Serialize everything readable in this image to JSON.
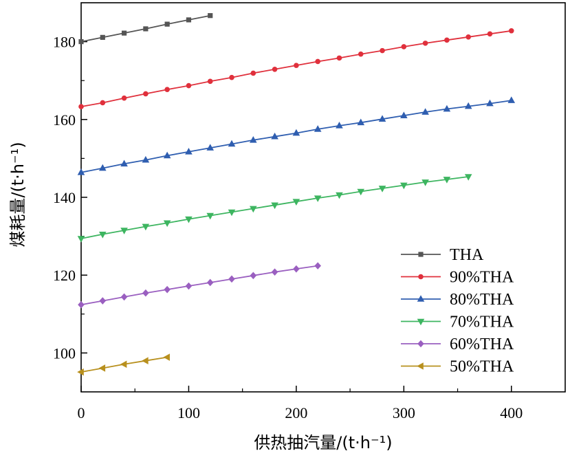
{
  "chart_data": {
    "type": "line",
    "xlabel": "供热抽汽量/(t·h⁻¹)",
    "ylabel": "煤耗量/(t·h⁻¹)",
    "xlim": [
      0,
      450
    ],
    "ylim": [
      90,
      190
    ],
    "xticks": [
      0,
      100,
      200,
      300,
      400
    ],
    "yticks": [
      100,
      120,
      140,
      160,
      180
    ],
    "legend_position": "bottom-right",
    "series": [
      {
        "name": "THA",
        "color": "#555555",
        "marker": "square",
        "x": [
          0,
          20,
          40,
          60,
          80,
          100,
          120
        ],
        "y": [
          180.0,
          181.1,
          182.2,
          183.3,
          184.5,
          185.6,
          186.7
        ]
      },
      {
        "name": "90%THA",
        "color": "#e0303c",
        "marker": "circle",
        "x": [
          0,
          20,
          40,
          60,
          80,
          100,
          120,
          140,
          160,
          180,
          200,
          220,
          240,
          260,
          280,
          300,
          320,
          340,
          360,
          380,
          400
        ],
        "y": [
          163.3,
          164.3,
          165.5,
          166.6,
          167.7,
          168.7,
          169.8,
          170.8,
          171.9,
          172.9,
          173.9,
          174.9,
          175.8,
          176.8,
          177.7,
          178.7,
          179.6,
          180.4,
          181.2,
          182.0,
          182.8
        ]
      },
      {
        "name": "80%THA",
        "color": "#2f5eb0",
        "marker": "triangle-up",
        "x": [
          0,
          20,
          40,
          60,
          80,
          100,
          120,
          140,
          160,
          180,
          200,
          220,
          240,
          260,
          280,
          300,
          320,
          340,
          360,
          380,
          400
        ],
        "y": [
          146.4,
          147.5,
          148.6,
          149.6,
          150.7,
          151.7,
          152.7,
          153.7,
          154.7,
          155.6,
          156.5,
          157.5,
          158.4,
          159.2,
          160.1,
          161.0,
          161.9,
          162.7,
          163.4,
          164.1,
          164.9
        ]
      },
      {
        "name": "70%THA",
        "color": "#3db560",
        "marker": "triangle-down",
        "x": [
          0,
          20,
          40,
          60,
          80,
          100,
          120,
          140,
          160,
          180,
          200,
          220,
          240,
          260,
          280,
          300,
          320,
          340,
          360
        ],
        "y": [
          129.4,
          130.5,
          131.5,
          132.5,
          133.4,
          134.4,
          135.3,
          136.2,
          137.1,
          138.0,
          138.9,
          139.8,
          140.6,
          141.5,
          142.3,
          143.1,
          143.9,
          144.6,
          145.3
        ]
      },
      {
        "name": "60%THA",
        "color": "#9a5fc0",
        "marker": "diamond",
        "x": [
          0,
          20,
          40,
          60,
          80,
          100,
          120,
          140,
          160,
          180,
          200,
          220
        ],
        "y": [
          112.4,
          113.4,
          114.4,
          115.4,
          116.3,
          117.2,
          118.1,
          119.0,
          119.9,
          120.8,
          121.6,
          122.4
        ]
      },
      {
        "name": "50%THA",
        "color": "#b8901e",
        "marker": "triangle-left",
        "x": [
          0,
          20,
          40,
          60,
          80
        ],
        "y": [
          95.1,
          96.1,
          97.1,
          98.0,
          98.9
        ]
      }
    ]
  }
}
